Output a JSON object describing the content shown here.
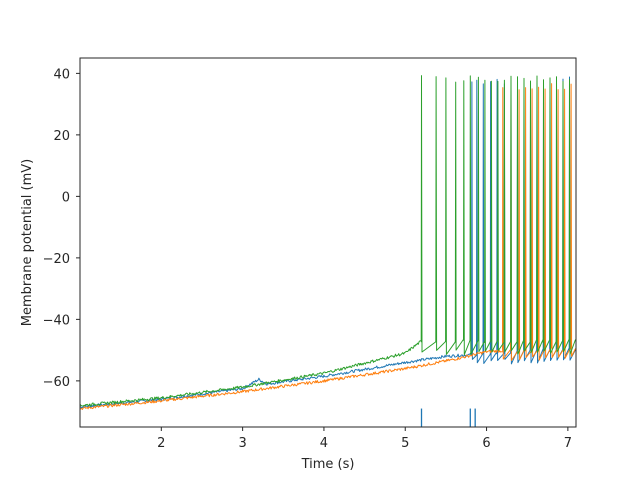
{
  "chart_data": {
    "type": "line",
    "title": "",
    "xlabel": "Time (s)",
    "ylabel": "Membrane potential (mV)",
    "xlim": [
      1.0,
      7.1
    ],
    "ylim": [
      -75,
      45
    ],
    "x_ticks": [
      2,
      3,
      4,
      5,
      6,
      7
    ],
    "y_ticks": [
      -60,
      -40,
      -20,
      0,
      20,
      40
    ],
    "x_tick_labels": [
      "2",
      "3",
      "4",
      "5",
      "6",
      "7"
    ],
    "y_tick_labels": [
      "−60",
      "−40",
      "−20",
      "0",
      "20",
      "40"
    ],
    "grid": false,
    "legend": "none",
    "series": [
      {
        "color": "#1f77b4",
        "baseline_points": [
          [
            1.0,
            -68.5
          ],
          [
            2.0,
            -66.0
          ],
          [
            3.0,
            -62.5
          ],
          [
            3.2,
            -59.5
          ],
          [
            3.3,
            -61.0
          ],
          [
            4.0,
            -58.5
          ],
          [
            5.0,
            -54.0
          ],
          [
            5.5,
            -52.0
          ],
          [
            5.8,
            -51.5
          ],
          [
            7.1,
            -49.5
          ]
        ],
        "spike_times": [
          5.82,
          5.88,
          5.96,
          6.05,
          6.13,
          6.22,
          6.3,
          6.38,
          6.46,
          6.54,
          6.62,
          6.7,
          6.78,
          6.86,
          6.94,
          7.02
        ],
        "spike_peak": 39.0,
        "trough": -53.0,
        "raster_marks": [
          5.2,
          5.8,
          5.86
        ]
      },
      {
        "color": "#ff7f0e",
        "baseline_points": [
          [
            1.0,
            -69.0
          ],
          [
            2.0,
            -66.5
          ],
          [
            3.0,
            -63.5
          ],
          [
            4.0,
            -60.0
          ],
          [
            5.0,
            -56.0
          ],
          [
            5.6,
            -53.0
          ],
          [
            6.0,
            -50.5
          ],
          [
            7.1,
            -49.0
          ]
        ],
        "spike_times": [
          6.2,
          6.3,
          6.4,
          6.48,
          6.56,
          6.64,
          6.72,
          6.8,
          6.88,
          6.96,
          7.04
        ],
        "spike_peak": 37.0,
        "trough": -52.0,
        "raster_marks": []
      },
      {
        "color": "#2ca02c",
        "baseline_points": [
          [
            1.0,
            -68.0
          ],
          [
            2.0,
            -65.5
          ],
          [
            3.0,
            -62.0
          ],
          [
            4.0,
            -57.5
          ],
          [
            5.0,
            -51.0
          ],
          [
            5.2,
            -47.0
          ]
        ],
        "spike_times": [
          5.2,
          5.38,
          5.5,
          5.62,
          5.72,
          5.8,
          5.9,
          5.98,
          6.06,
          6.14,
          6.22,
          6.3,
          6.38,
          6.46,
          6.54,
          6.62,
          6.7,
          6.78,
          6.86,
          6.94,
          7.02
        ],
        "spike_peak": 39.5,
        "trough": -50.0,
        "raster_marks": []
      }
    ]
  }
}
